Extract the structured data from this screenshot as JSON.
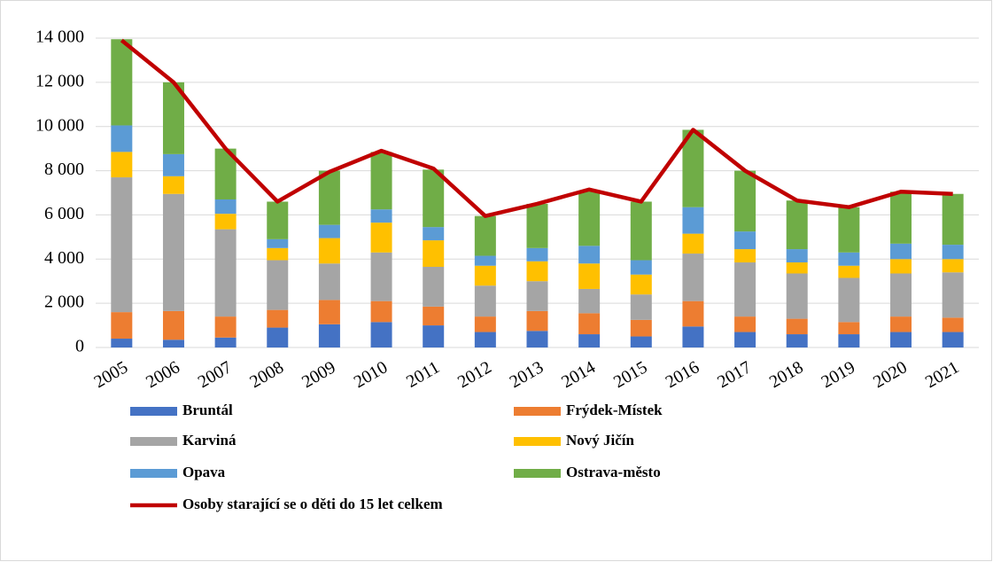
{
  "chart_data": {
    "type": "bar",
    "stacked": true,
    "grid": true,
    "categories": [
      "2005",
      "2006",
      "2007",
      "2008",
      "2009",
      "2010",
      "2011",
      "2012",
      "2013",
      "2014",
      "2015",
      "2016",
      "2017",
      "2018",
      "2019",
      "2020",
      "2021"
    ],
    "ylim": [
      0,
      14000
    ],
    "yticks": [
      0,
      {
        "value": 2000,
        "label": "2 000"
      },
      {
        "value": 4000,
        "label": "4 000"
      },
      {
        "value": 6000,
        "label": "6 000"
      },
      {
        "value": 8000,
        "label": "8 000"
      },
      {
        "value": 10000,
        "label": "10 000"
      },
      {
        "value": 12000,
        "label": "12 000"
      },
      {
        "value": 14000,
        "label": "14 000"
      }
    ],
    "series": [
      {
        "name": "Bruntál",
        "type": "bar",
        "color": "#4472c4",
        "values": [
          400,
          350,
          450,
          900,
          1050,
          1150,
          1000,
          700,
          750,
          600,
          500,
          950,
          700,
          600,
          600,
          700,
          700
        ]
      },
      {
        "name": "Frýdek-Místek",
        "type": "bar",
        "color": "#ed7d31",
        "values": [
          1200,
          1300,
          950,
          800,
          1100,
          950,
          850,
          700,
          900,
          950,
          750,
          1150,
          700,
          700,
          550,
          700,
          650
        ]
      },
      {
        "name": "Karviná",
        "type": "bar",
        "color": "#a5a5a5",
        "values": [
          6100,
          5300,
          3950,
          2250,
          1650,
          2200,
          1800,
          1400,
          1350,
          1100,
          1150,
          2150,
          2450,
          2050,
          2000,
          1950,
          2050
        ]
      },
      {
        "name": "Nový Jičín",
        "type": "bar",
        "color": "#ffc000",
        "values": [
          1150,
          800,
          700,
          550,
          1150,
          1350,
          1200,
          900,
          900,
          1150,
          900,
          900,
          600,
          500,
          550,
          650,
          600
        ]
      },
      {
        "name": "Opava",
        "type": "bar",
        "color": "#5b9bd5",
        "values": [
          1200,
          1000,
          650,
          400,
          600,
          600,
          600,
          450,
          600,
          800,
          650,
          1200,
          800,
          600,
          600,
          700,
          650
        ]
      },
      {
        "name": "Ostrava-město",
        "type": "bar",
        "color": "#70ad47",
        "values": [
          3900,
          3250,
          2300,
          1700,
          2450,
          2600,
          2600,
          1800,
          2000,
          2500,
          2650,
          3500,
          2750,
          2200,
          2050,
          2350,
          2300
        ]
      },
      {
        "name": "Osoby starající se o děti do 15 let celkem",
        "type": "line",
        "color": "#c00000",
        "values": [
          13900,
          12000,
          9000,
          6600,
          7950,
          8900,
          8100,
          5950,
          6500,
          7150,
          6600,
          9850,
          8000,
          6650,
          6350,
          7050,
          6950
        ]
      }
    ]
  }
}
